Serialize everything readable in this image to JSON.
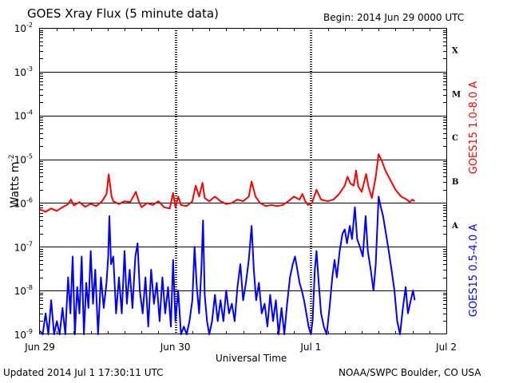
{
  "header": {
    "title": "GOES Xray Flux (5 minute data)",
    "begin": "Begin:  2014 Jun 29 0000 UTC"
  },
  "footer": {
    "updated": "Updated 2014 Jul  1 17:30:11 UTC",
    "credit": "NOAA/SWPC Boulder, CO USA"
  },
  "chart_data": {
    "type": "line",
    "title": "GOES Xray Flux (5 minute data)",
    "xlabel": "Universal Time",
    "ylabel": "Watts m",
    "ylabel_superscript": "-2",
    "y_scale": "log",
    "ylim": [
      1e-09,
      0.01
    ],
    "y_ticks": [
      {
        "base": "10",
        "exp": "-9",
        "value": 1e-09
      },
      {
        "base": "10",
        "exp": "-8",
        "value": 1e-08
      },
      {
        "base": "10",
        "exp": "-7",
        "value": 1e-07
      },
      {
        "base": "10",
        "exp": "-6",
        "value": 1e-06
      },
      {
        "base": "10",
        "exp": "-5",
        "value": 1e-05
      },
      {
        "base": "10",
        "exp": "-4",
        "value": 0.0001
      },
      {
        "base": "10",
        "exp": "-3",
        "value": 0.001
      },
      {
        "base": "10",
        "exp": "-2",
        "value": 0.01
      }
    ],
    "x_unit": "hours since 2014 Jun 29 0000 UTC",
    "xlim": [
      0,
      72
    ],
    "x_ticks": [
      {
        "label": "Jun 29",
        "x": 0
      },
      {
        "label": "Jun 30",
        "x": 24
      },
      {
        "label": "Jul 1",
        "x": 48
      },
      {
        "label": "Jul 2",
        "x": 72
      }
    ],
    "flare_classes": [
      {
        "label": "A",
        "value": 1e-07
      },
      {
        "label": "B",
        "value": 1e-06
      },
      {
        "label": "C",
        "value": 1e-05
      },
      {
        "label": "M",
        "value": 0.0001
      },
      {
        "label": "X",
        "value": 0.001
      }
    ],
    "grid": true,
    "series": [
      {
        "name": "GOES15 1.0-8.0 A",
        "color": "#ff0000",
        "points": [
          [
            0,
            7.2e-07
          ],
          [
            1,
            6.3e-07
          ],
          [
            2,
            7.5e-07
          ],
          [
            3,
            6.6e-07
          ],
          [
            4,
            8e-07
          ],
          [
            5,
            9.5e-07
          ],
          [
            5.5,
            1.2e-06
          ],
          [
            6,
            8.8e-07
          ],
          [
            7,
            1.05e-06
          ],
          [
            8,
            8.2e-07
          ],
          [
            9,
            9.6e-07
          ],
          [
            10,
            8.5e-07
          ],
          [
            11,
            1.1e-06
          ],
          [
            11.8,
            1.6e-06
          ],
          [
            12.2,
            4.5e-06
          ],
          [
            12.7,
            1.4e-06
          ],
          [
            13,
            1.1e-06
          ],
          [
            14,
            9.5e-07
          ],
          [
            15,
            1.1e-06
          ],
          [
            16,
            1.05e-06
          ],
          [
            17,
            1.8e-06
          ],
          [
            17.5,
            1.1e-06
          ],
          [
            18,
            8e-07
          ],
          [
            19,
            1e-06
          ],
          [
            20,
            9e-07
          ],
          [
            21,
            1.1e-06
          ],
          [
            22,
            8e-07
          ],
          [
            23,
            7.5e-07
          ],
          [
            23.6,
            1.7e-06
          ],
          [
            24,
            8e-07
          ],
          [
            24.5,
            1.4e-06
          ],
          [
            25,
            9e-07
          ],
          [
            26,
            8.5e-07
          ],
          [
            27,
            1.1e-06
          ],
          [
            27.6,
            2.5e-06
          ],
          [
            28.2,
            1.4e-06
          ],
          [
            28.8,
            2.9e-06
          ],
          [
            29.2,
            1.3e-06
          ],
          [
            30,
            1.1e-06
          ],
          [
            31,
            1.4e-06
          ],
          [
            32,
            1.1e-06
          ],
          [
            33,
            9.5e-07
          ],
          [
            34,
            1e-06
          ],
          [
            35,
            1.2e-06
          ],
          [
            36,
            1.1e-06
          ],
          [
            37,
            1.4e-06
          ],
          [
            37.5,
            3.1e-06
          ],
          [
            38.2,
            1.4e-06
          ],
          [
            39,
            1e-06
          ],
          [
            40,
            8.5e-07
          ],
          [
            41,
            9e-07
          ],
          [
            42,
            8.5e-07
          ],
          [
            43,
            9e-07
          ],
          [
            44,
            1.1e-06
          ],
          [
            45,
            1.4e-06
          ],
          [
            46,
            1.2e-06
          ],
          [
            46.5,
            1.6e-06
          ],
          [
            47,
            1.1e-06
          ],
          [
            47.5,
            9e-07
          ],
          [
            48.2,
            1e-06
          ],
          [
            49,
            2e-06
          ],
          [
            49.8,
            1.2e-06
          ],
          [
            51,
            1.1e-06
          ],
          [
            52,
            1.2e-06
          ],
          [
            53,
            1.6e-06
          ],
          [
            54,
            2.5e-06
          ],
          [
            54.5,
            4e-06
          ],
          [
            55,
            2.8e-06
          ],
          [
            55.6,
            2.5e-06
          ],
          [
            56,
            5.5e-06
          ],
          [
            56.4,
            2.4e-06
          ],
          [
            57,
            1.8e-06
          ],
          [
            57.8,
            4.6e-06
          ],
          [
            58.2,
            2.4e-06
          ],
          [
            58.8,
            1.3e-06
          ],
          [
            59.5,
            4e-06
          ],
          [
            60,
            1.3e-05
          ],
          [
            60.6,
            9e-06
          ],
          [
            61.2,
            5.5e-06
          ],
          [
            62,
            3.5e-06
          ],
          [
            63,
            2e-06
          ],
          [
            64,
            1.4e-06
          ],
          [
            65,
            1.2e-06
          ],
          [
            65.5,
            1.05e-06
          ],
          [
            66,
            1.2e-06
          ],
          [
            66.4,
            1.1e-06
          ]
        ]
      },
      {
        "name": "GOES15 0.5-4.0 A",
        "color": "#0000ff",
        "points": [
          [
            0,
            1.2e-09
          ],
          [
            0.5,
            1e-09
          ],
          [
            1,
            3e-09
          ],
          [
            1.5,
            1e-09
          ],
          [
            2,
            6e-09
          ],
          [
            2.5,
            1e-09
          ],
          [
            3,
            2e-09
          ],
          [
            3.5,
            1e-09
          ],
          [
            4,
            4e-09
          ],
          [
            4.5,
            1e-09
          ],
          [
            5,
            2e-08
          ],
          [
            5.4,
            3e-09
          ],
          [
            5.8,
            6e-08
          ],
          [
            6.2,
            1e-09
          ],
          [
            6.6,
            1.2e-08
          ],
          [
            7,
            3e-09
          ],
          [
            7.4,
            6e-08
          ],
          [
            7.8,
            1e-09
          ],
          [
            8.2,
            1.5e-08
          ],
          [
            8.6,
            4e-09
          ],
          [
            9,
            8e-08
          ],
          [
            9.4,
            5e-09
          ],
          [
            9.8,
            3e-08
          ],
          [
            10.3,
            1e-09
          ],
          [
            10.8,
            2e-08
          ],
          [
            11.3,
            4e-09
          ],
          [
            11.8,
            1.5e-08
          ],
          [
            12.1,
            6e-08
          ],
          [
            12.3,
            5e-07
          ],
          [
            12.6,
            4e-08
          ],
          [
            13,
            6e-08
          ],
          [
            13.5,
            3e-09
          ],
          [
            14,
            2e-08
          ],
          [
            14.5,
            3e-09
          ],
          [
            15,
            8e-08
          ],
          [
            15.4,
            5e-09
          ],
          [
            15.9,
            3e-08
          ],
          [
            16.4,
            4e-09
          ],
          [
            16.9,
            6e-08
          ],
          [
            17.3,
            1.2e-07
          ],
          [
            17.7,
            1e-08
          ],
          [
            18.2,
            3e-09
          ],
          [
            18.7,
            2e-08
          ],
          [
            19.2,
            1.5e-09
          ],
          [
            19.7,
            3e-08
          ],
          [
            20.2,
            5e-09
          ],
          [
            20.7,
            1.5e-08
          ],
          [
            21.2,
            2e-09
          ],
          [
            21.7,
            2e-08
          ],
          [
            22.2,
            3e-09
          ],
          [
            22.7,
            1.2e-08
          ],
          [
            23.2,
            1.5e-09
          ],
          [
            23.6,
            5e-08
          ],
          [
            24,
            2e-09
          ],
          [
            24.5,
            1e-08
          ],
          [
            25,
            1e-09
          ],
          [
            25.5,
            1.5e-09
          ],
          [
            26,
            1e-09
          ],
          [
            26.5,
            2e-09
          ],
          [
            27,
            6e-09
          ],
          [
            27.4,
            1e-07
          ],
          [
            27.8,
            1.2e-08
          ],
          [
            28.2,
            3e-09
          ],
          [
            28.6,
            3e-08
          ],
          [
            28.9,
            4e-07
          ],
          [
            29.2,
            8e-09
          ],
          [
            29.6,
            2e-09
          ],
          [
            30,
            1e-09
          ],
          [
            30.5,
            2e-09
          ],
          [
            31,
            8e-09
          ],
          [
            31.5,
            2e-09
          ],
          [
            32,
            6e-09
          ],
          [
            32.5,
            2e-09
          ],
          [
            33,
            1e-08
          ],
          [
            33.5,
            3e-09
          ],
          [
            34,
            5e-09
          ],
          [
            34.5,
            2e-09
          ],
          [
            35,
            1.2e-08
          ],
          [
            35.5,
            4e-08
          ],
          [
            36,
            6e-09
          ],
          [
            36.5,
            1.5e-08
          ],
          [
            37,
            5e-08
          ],
          [
            37.5,
            3e-07
          ],
          [
            37.9,
            3e-08
          ],
          [
            38.3,
            6e-09
          ],
          [
            38.8,
            1.5e-08
          ],
          [
            39.3,
            3e-09
          ],
          [
            39.8,
            5e-09
          ],
          [
            40.3,
            1.5e-09
          ],
          [
            40.8,
            8e-09
          ],
          [
            41.3,
            2e-09
          ],
          [
            41.8,
            6e-09
          ],
          [
            42.3,
            1e-09
          ],
          [
            42.8,
            4e-09
          ],
          [
            43.3,
            1e-09
          ],
          [
            43.8,
            5e-09
          ],
          [
            44.3,
            2e-08
          ],
          [
            44.8,
            4e-08
          ],
          [
            45.2,
            6e-08
          ],
          [
            45.6,
            3e-08
          ],
          [
            46,
            1.5e-08
          ],
          [
            46.4,
            1e-08
          ],
          [
            46.8,
            6e-09
          ],
          [
            47.2,
            3e-09
          ],
          [
            47.6,
            1.5e-09
          ],
          [
            48,
            1e-09
          ],
          [
            48.3,
            2e-09
          ],
          [
            48.7,
            3e-08
          ],
          [
            49,
            8e-08
          ],
          [
            49.4,
            1.5e-08
          ],
          [
            49.8,
            3e-09
          ],
          [
            50.3,
            1.5e-09
          ],
          [
            50.8,
            1e-09
          ],
          [
            51.3,
            4e-09
          ],
          [
            51.8,
            2e-08
          ],
          [
            52.2,
            5e-08
          ],
          [
            52.6,
            2e-08
          ],
          [
            53.1,
            8e-08
          ],
          [
            53.6,
            2e-07
          ],
          [
            54,
            2.5e-07
          ],
          [
            54.4,
            1.2e-07
          ],
          [
            54.9,
            3e-07
          ],
          [
            55.3,
            1.5e-07
          ],
          [
            55.8,
            8e-07
          ],
          [
            56.2,
            1.5e-07
          ],
          [
            56.7,
            1e-07
          ],
          [
            57.2,
            6e-08
          ],
          [
            57.7,
            5e-07
          ],
          [
            58.1,
            8e-08
          ],
          [
            58.6,
            3e-08
          ],
          [
            59.1,
            1e-08
          ],
          [
            59.5,
            4e-08
          ],
          [
            60,
            1.4e-06
          ],
          [
            60.4,
            8e-07
          ],
          [
            60.8,
            5e-07
          ],
          [
            61.3,
            2e-07
          ],
          [
            61.8,
            8e-08
          ],
          [
            62.3,
            3e-08
          ],
          [
            62.8,
            1e-08
          ],
          [
            63.3,
            2e-09
          ],
          [
            63.8,
            1e-09
          ],
          [
            64.3,
            4e-09
          ],
          [
            64.8,
            1.2e-08
          ],
          [
            65.2,
            3e-09
          ],
          [
            65.7,
            6e-09
          ],
          [
            66.1,
            1e-08
          ],
          [
            66.4,
            6e-09
          ]
        ]
      }
    ]
  }
}
